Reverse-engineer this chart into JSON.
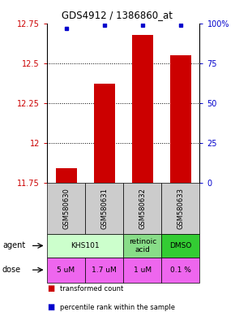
{
  "title": "GDS4912 / 1386860_at",
  "samples": [
    "GSM580630",
    "GSM580631",
    "GSM580632",
    "GSM580633"
  ],
  "bar_values": [
    11.84,
    12.37,
    12.68,
    12.55
  ],
  "dot_values": [
    97,
    99,
    99,
    99
  ],
  "ylim_left": [
    11.75,
    12.75
  ],
  "ylim_right": [
    0,
    100
  ],
  "yticks_left": [
    11.75,
    12.0,
    12.25,
    12.5,
    12.75
  ],
  "ytick_labels_left": [
    "11.75",
    "12",
    "12.25",
    "12.5",
    "12.75"
  ],
  "yticks_right": [
    0,
    25,
    50,
    75,
    100
  ],
  "ytick_labels_right": [
    "0",
    "25",
    "50",
    "75",
    "100%"
  ],
  "bar_color": "#cc0000",
  "dot_color": "#0000cc",
  "agent_info": [
    {
      "cols": [
        0,
        1
      ],
      "text": "KHS101",
      "color": "#ccffcc"
    },
    {
      "cols": [
        2
      ],
      "text": "retinoic\nacid",
      "color": "#88dd88"
    },
    {
      "cols": [
        3
      ],
      "text": "DMSO",
      "color": "#33cc33"
    }
  ],
  "dose_labels": [
    "5 uM",
    "1.7 uM",
    "1 uM",
    "0.1 %"
  ],
  "dose_color": "#ee66ee",
  "sample_bg_color": "#cccccc",
  "legend_red_label": "transformed count",
  "legend_blue_label": "percentile rank within the sample",
  "left_label_color": "#cc0000",
  "right_label_color": "#0000cc",
  "title_fontsize": 8.5,
  "tick_fontsize": 7,
  "sample_fontsize": 6,
  "table_fontsize": 6.5,
  "legend_fontsize": 6
}
